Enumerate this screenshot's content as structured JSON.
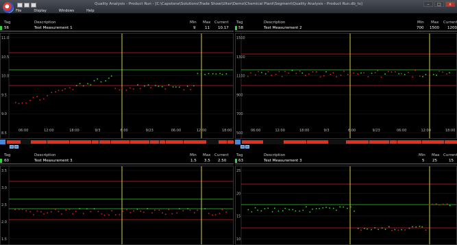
{
  "window": {
    "title": "Quality Analysis - Product Run - [C:\\Capstone\\Solutions\\Trade Show\\Ulter\\Demo\\Chemical Plant\\Segment\\Quality Analysis - Product Run.db_ts]",
    "menu": [
      "File",
      "Display",
      "Windows",
      "Help"
    ],
    "controls": [
      "–",
      "□",
      "x"
    ]
  },
  "columns": {
    "tag": "Tag",
    "description": "Description",
    "min": "Min",
    "max": "Max",
    "current": "Current"
  },
  "panels": [
    {
      "tag": "56",
      "description": "Test Measurement 1",
      "min": "9",
      "max": "11",
      "current": "10.17",
      "y_ticks": [
        "11.0",
        "10.5",
        "10.0",
        "9.5",
        "9.0",
        "8.5"
      ],
      "x_ticks": [
        "06:00",
        "12:00",
        "18:00",
        "9/3",
        "6:00",
        "9/23",
        "06:00",
        "12:00",
        "18:00"
      ]
    },
    {
      "tag": "58",
      "description": "Test Measurement 2",
      "min": "700",
      "max": "1500",
      "current": "1200",
      "y_ticks": [
        "1500",
        "1300",
        "1100",
        "900",
        "700",
        "500"
      ],
      "x_ticks": [
        "06:00",
        "12:00",
        "18:00",
        "9/3",
        "6:00",
        "9/23",
        "06:00",
        "12:00",
        "18:00"
      ]
    },
    {
      "tag": "60",
      "description": "Test Measurement 3",
      "min": "1.5",
      "max": "3.5",
      "current": "2.50",
      "y_ticks": [
        "3.5",
        "3.0",
        "2.5",
        "2.0",
        "1.5"
      ],
      "x_ticks": []
    },
    {
      "tag": "63",
      "description": "Test Measurement 3",
      "min": "5",
      "max": "25",
      "current": "15",
      "y_ticks": [
        "25",
        "20",
        "15",
        "10"
      ],
      "x_ticks": []
    }
  ],
  "colors": {
    "green": "#2fd12f",
    "red": "#e01e1e",
    "yellow": "#d8d040",
    "timebar_red": "#e0301e",
    "timebar_green": "#2fd12f"
  }
}
